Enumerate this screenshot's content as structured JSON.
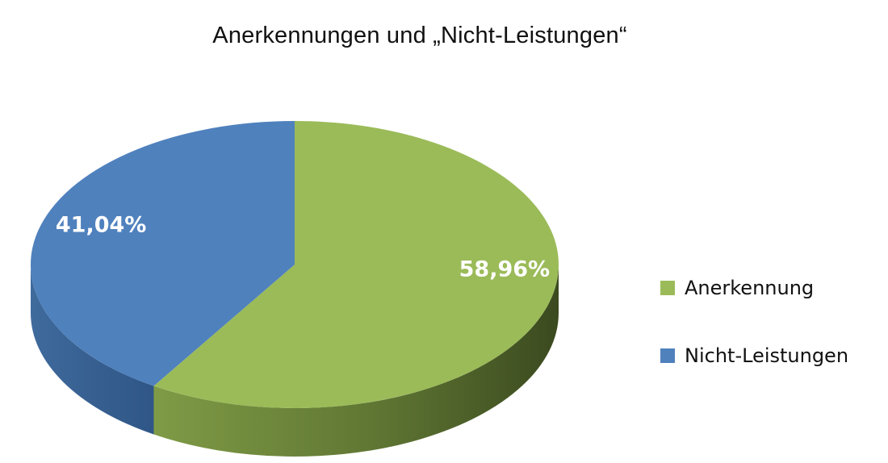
{
  "chart_data": {
    "type": "pie",
    "title": "Anerkennungen und „Nicht-Leistungen“",
    "slices": [
      {
        "name": "Anerkennung",
        "value": 58.96,
        "label": "58,96%",
        "color": "#9bbb59"
      },
      {
        "name": "Nicht-Leistungen",
        "value": 41.04,
        "label": "41,04%",
        "color": "#4f81bd"
      }
    ],
    "legend_position": "right",
    "style": "3d"
  }
}
